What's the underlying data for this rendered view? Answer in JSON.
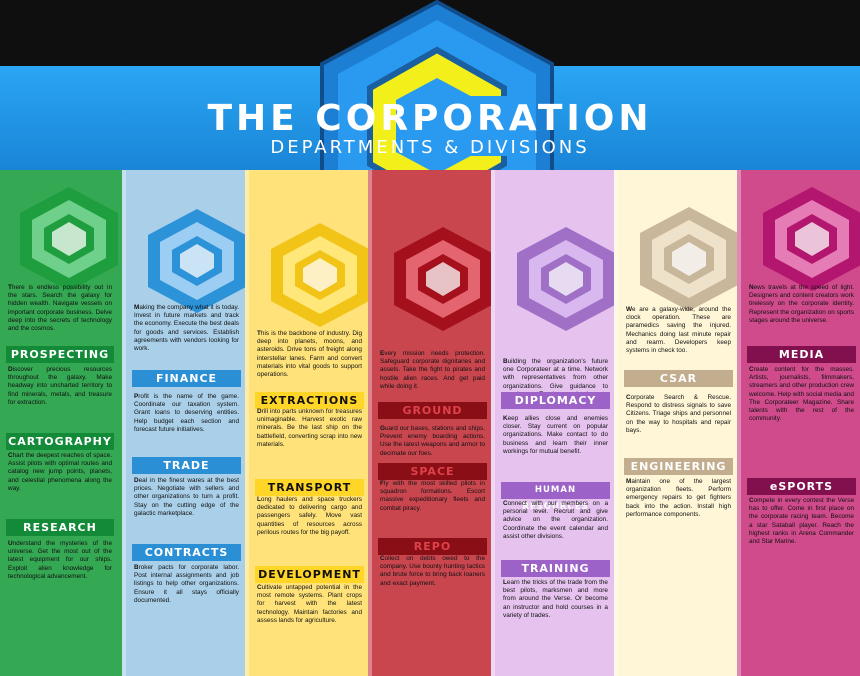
{
  "header": {
    "title": "THE CORPORATION",
    "subtitle": "DEPARTMENTS & DIVISIONS"
  },
  "colors": {
    "prospecting": "#35a853",
    "finance": "#a9cfe9",
    "industry": "#ffe27a",
    "security": "#c9464f",
    "logistics": "#e6c3ef",
    "medical": "#fff6d8",
    "media": "#cf4b8c"
  },
  "columns": [
    {
      "key": "prospecting",
      "icon": "green-cube-hex-icon",
      "intro": "There is endless possibility out in the stars. Search the galaxy for hidden wealth. Navigate vessels on important corporate business. Delve deep into the secrets of technology and the cosmos.",
      "sections": [
        {
          "heading": "PROSPECTING",
          "text": "Discover precious resources throughout the galaxy. Make headway into uncharted territory to find minerals, metals, and treasure for extraction."
        },
        {
          "heading": "CARTOGRAPHY",
          "text": "Chart the deepest reaches of space. Assist pilots with optimal routes and catalog new jump points, planets, and celestial phenomena along the way."
        },
        {
          "heading": "RESEARCH",
          "text": "Understand the mysteries of the universe. Get the most out of the latest equipment for our ships. Exploit alien knowledge for technological advancement."
        }
      ]
    },
    {
      "key": "finance",
      "icon": "blue-cube-hex-icon",
      "intro": "Making the company what it is today. Invest in future markets and track the economy. Execute the best deals for goods and services. Establish agreements with vendors looking for work.",
      "sections": [
        {
          "heading": "FINANCE",
          "text": "Profit is the name of the game. Coordinate our taxation system. Grant loans to deserving entities. Help budget each section and forecast future initiatives."
        },
        {
          "heading": "TRADE",
          "text": "Deal in the finest wares at the best prices. Negotiate with sellers and other organizations to turn a profit. Stay on the cutting edge of the galactic marketplace."
        },
        {
          "heading": "CONTRACTS",
          "text": "Broker pacts for corporate labor. Post internal assignments and job listings to help other organizations. Ensure it all stays officially documented."
        }
      ]
    },
    {
      "key": "industry",
      "icon": "yellow-cube-hex-icon",
      "intro": "This is the backbone of industry. Dig deep into planets, moons, and asteroids. Drive tons of freight along interstellar lanes. Farm and convert materials into vital goods to support operations.",
      "sections": [
        {
          "heading": "EXTRACTIONS",
          "text": "Drill into parts unknown for treasures unimaginable. Harvest exotic raw minerals. Be the last ship on the battlefield, converting scrap into new materials."
        },
        {
          "heading": "TRANSPORT",
          "text": "Long haulers and space truckers dedicated to delivering cargo and passengers safely. Move vast quantities of resources across perilous routes for the big payoff."
        },
        {
          "heading": "DEVELOPMENT",
          "text": "Cultivate untapped potential in the most remote systems. Plant crops for harvest with the latest technology. Maintain factories and assess lands for agriculture."
        }
      ]
    },
    {
      "key": "security",
      "icon": "red-cube-hex-icon",
      "intro": "Every mission needs protection. Safeguard corporate dignitaries and assets. Take the fight to pirates and hostile alien races. And get paid while doing it.",
      "sections": [
        {
          "heading": "GROUND",
          "text": "Guard our bases, stations and ships. Prevent enemy boarding actions. Use the latest weapons and armor to decimate our foes."
        },
        {
          "heading": "SPACE",
          "text": "Fly with the most skilled pilots in squadron formations. Escort massive expeditionary fleets and combat piracy."
        },
        {
          "heading": "REPO",
          "text": "Collect on debts owed to the company. Use bounty hunting tactics and brute force to bring back loaners and exact payment."
        }
      ]
    },
    {
      "key": "logistics",
      "icon": "purple-cube-hex-icon",
      "intro": "Building the organization's future one Corporateer at a time. Network with representatives from other organizations. Give guidance to members. Teach mechanics to improve skills.",
      "sections": [
        {
          "heading": "DIPLOMACY",
          "text": "Keep allies close and enemies closer. Stay current on popular organizations. Make contact to do business and learn their inner workings for mutual benefit."
        },
        {
          "heading": "HUMAN RESOURCES",
          "text": "Connect with our members on a personal level. Recruit and give advice on the organization. Coordinate the event calendar and assist other divisions."
        },
        {
          "heading": "TRAINING",
          "text": "Learn the tricks of the trade from the best pilots, marksmen and more from around the Verse. Or become an instructor and hold courses in a variety of trades."
        }
      ]
    },
    {
      "key": "medical",
      "icon": "tan-cube-hex-icon",
      "intro": "We are a galaxy-wide, around the clock operation. These are paramedics saving the injured. Mechanics doing last minute repair and rearm. Developers keep systems in check too.",
      "sections": [
        {
          "heading": "CSAR",
          "text": "Corporate Search & Rescue. Respond to distress signals to save Citizens. Triage ships and personnel on the way to hospitals and repair bays."
        },
        {
          "heading": "ENGINEERING",
          "text": "Maintain one of the largest organization fleets. Perform emergency repairs to get fighters back into the action. Install high performance components."
        }
      ]
    },
    {
      "key": "media",
      "icon": "pink-cube-hex-icon",
      "intro": "News travels at the speed of light. Designers and content creators work tirelessly on the corporate identity. Represent the organization on sports stages around the universe.",
      "sections": [
        {
          "heading": "MEDIA",
          "text": "Create content for the masses. Artists, journalists, filmmakers, streamers and other production crew welcome. Help with social media and The Corporateer Magazine. Share talents with the rest of the community."
        },
        {
          "heading": "eSPORTS",
          "text": "Compete in every contest the Verse has to offer. Come in first place on the corporate racing team. Become a star Sataball player. Reach the highest ranks in Arena Commander and Star Marine."
        }
      ]
    }
  ]
}
